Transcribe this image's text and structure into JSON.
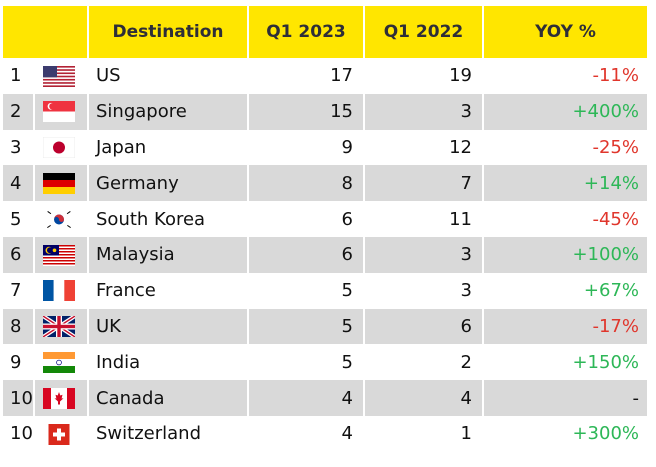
{
  "chart_data": {
    "type": "table",
    "columns": [
      "",
      "Destination",
      "Q1 2023",
      "Q1 2022",
      "YOY %"
    ],
    "rows": [
      {
        "rank": "1",
        "flag": "us-flag-icon",
        "destination": "US",
        "q1_2023": "17",
        "q1_2022": "19",
        "yoy": "-11%",
        "sign": "neg"
      },
      {
        "rank": "2",
        "flag": "singapore-flag-icon",
        "destination": "Singapore",
        "q1_2023": "15",
        "q1_2022": "3",
        "yoy": "+400%",
        "sign": "pos"
      },
      {
        "rank": "3",
        "flag": "japan-flag-icon",
        "destination": "Japan",
        "q1_2023": "9",
        "q1_2022": "12",
        "yoy": "-25%",
        "sign": "neg"
      },
      {
        "rank": "4",
        "flag": "germany-flag-icon",
        "destination": "Germany",
        "q1_2023": "8",
        "q1_2022": "7",
        "yoy": "+14%",
        "sign": "pos"
      },
      {
        "rank": "5",
        "flag": "south-korea-flag-icon",
        "destination": "South Korea",
        "q1_2023": "6",
        "q1_2022": "11",
        "yoy": "-45%",
        "sign": "neg"
      },
      {
        "rank": "6",
        "flag": "malaysia-flag-icon",
        "destination": "Malaysia",
        "q1_2023": "6",
        "q1_2022": "3",
        "yoy": "+100%",
        "sign": "pos"
      },
      {
        "rank": "7",
        "flag": "france-flag-icon",
        "destination": "France",
        "q1_2023": "5",
        "q1_2022": "3",
        "yoy": "+67%",
        "sign": "pos"
      },
      {
        "rank": "8",
        "flag": "uk-flag-icon",
        "destination": "UK",
        "q1_2023": "5",
        "q1_2022": "6",
        "yoy": "-17%",
        "sign": "neg"
      },
      {
        "rank": "9",
        "flag": "india-flag-icon",
        "destination": "India",
        "q1_2023": "5",
        "q1_2022": "2",
        "yoy": "+150%",
        "sign": "pos"
      },
      {
        "rank": "10",
        "flag": "canada-flag-icon",
        "destination": "Canada",
        "q1_2023": "4",
        "q1_2022": "4",
        "yoy": "-",
        "sign": "neutral"
      },
      {
        "rank": "10",
        "flag": "switzerland-flag-icon",
        "destination": "Switzerland",
        "q1_2023": "4",
        "q1_2022": "1",
        "yoy": "+300%",
        "sign": "pos"
      }
    ],
    "colors": {
      "header_bg": "#ffe600",
      "header_text": "#2e2e38",
      "row_shade": "#d9d9d9",
      "positive": "#2db757",
      "negative": "#e0362c"
    }
  }
}
